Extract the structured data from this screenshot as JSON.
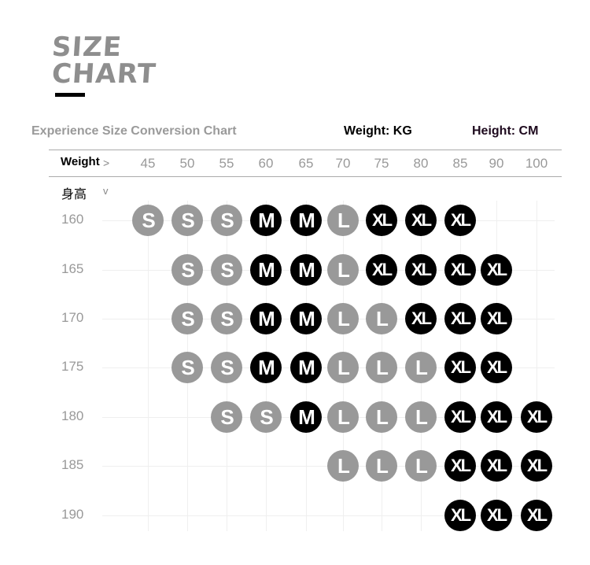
{
  "heading": {
    "line1": "SIZE",
    "line2": "CHART"
  },
  "subtitle": "Experience Size Conversion Chart",
  "weight_unit": "Weight: KG",
  "height_unit": "Height: CM",
  "weight_label": "Weight",
  "weight_arrow": ">",
  "height_label": "身高",
  "height_arrow": "v",
  "weights": [
    "45",
    "50",
    "55",
    "60",
    "65",
    "70",
    "75",
    "80",
    "85",
    "90",
    "100"
  ],
  "heights": [
    "160",
    "165",
    "170",
    "175",
    "180",
    "185",
    "190"
  ],
  "colors": {
    "S": "#999999",
    "M": "#000000",
    "L": "#999999",
    "XL": "#000000"
  },
  "sizes": [
    [
      "S",
      "S",
      "S",
      "M",
      "M",
      "L",
      "XL",
      "XL",
      "XL",
      "",
      ""
    ],
    [
      "",
      "S",
      "S",
      "M",
      "M",
      "L",
      "XL",
      "XL",
      "XL",
      "XL",
      ""
    ],
    [
      "",
      "S",
      "S",
      "M",
      "M",
      "L",
      "L",
      "XL",
      "XL",
      "XL",
      ""
    ],
    [
      "",
      "S",
      "S",
      "M",
      "M",
      "L",
      "L",
      "L",
      "XL",
      "XL",
      ""
    ],
    [
      "",
      "",
      "S",
      "S",
      "M",
      "L",
      "L",
      "L",
      "XL",
      "XL",
      "XL"
    ],
    [
      "",
      "",
      "",
      "",
      "",
      "L",
      "L",
      "L",
      "XL",
      "XL",
      "XL"
    ],
    [
      "",
      "",
      "",
      "",
      "",
      "",
      "",
      "",
      "XL",
      "XL",
      "XL"
    ]
  ]
}
